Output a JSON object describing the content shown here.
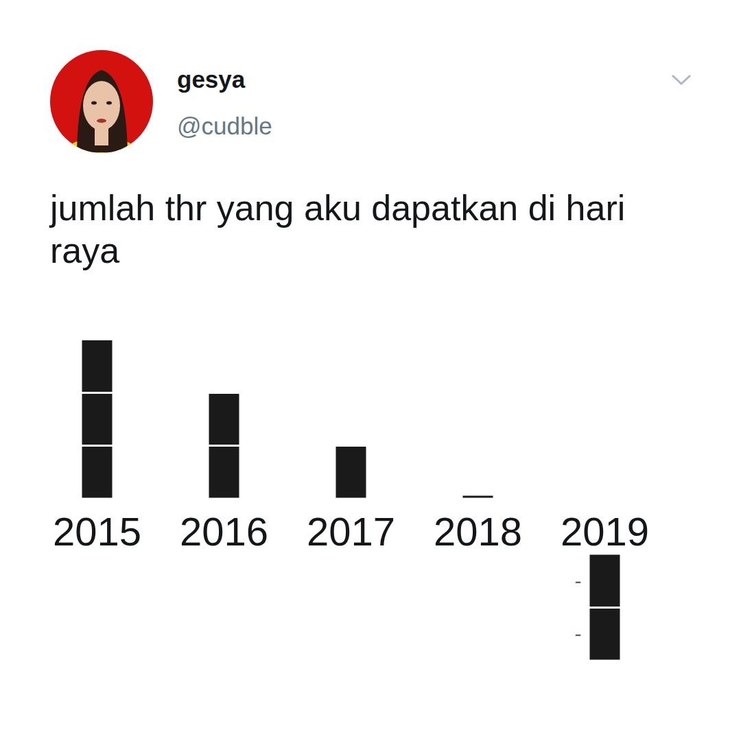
{
  "header": {
    "name": "gesya",
    "handle": "@cudble"
  },
  "chart_data": {
    "type": "bar",
    "title": "jumlah thr yang aku dapatkan di hari raya",
    "categories": [
      "2015",
      "2016",
      "2017",
      "2018",
      "2019"
    ],
    "values": [
      3,
      2,
      1,
      0,
      -2
    ],
    "color": "#1a1a1a",
    "ylim": [
      -2,
      3
    ],
    "yticks": [
      -2,
      -1,
      0,
      1,
      2,
      3
    ],
    "grid": false,
    "tick_labels": "x",
    "annotations": [
      {
        "text": "-",
        "x": "2019",
        "y": -0.5
      },
      {
        "text": "-",
        "x": "2019",
        "y": -1.5
      }
    ]
  }
}
